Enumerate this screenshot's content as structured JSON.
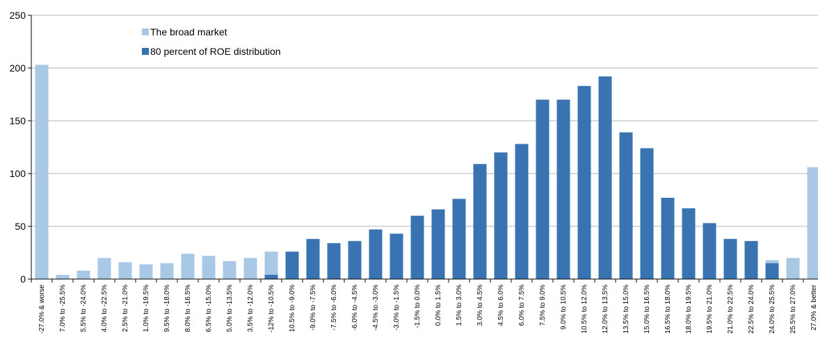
{
  "colors": {
    "broad_market": "#a9c8e6",
    "roe80": "#3a73b1",
    "grid": "#b3b3b3",
    "axis": "#000000"
  },
  "chart_data": {
    "type": "bar",
    "title": "",
    "xlabel": "",
    "ylabel": "",
    "ylim": [
      0,
      250
    ],
    "yticks": [
      0,
      50,
      100,
      150,
      200,
      250
    ],
    "grid": true,
    "legend_position": "top-left",
    "categories": [
      "-27.0% & worse",
      "7.0% to -25.5%",
      "5.5% to -24.0%",
      "4.0% to -22.5%",
      "2.5% to -21.0%",
      "1.0% to -19.5%",
      "9.5% to -18.0%",
      "8.0% to -16.5%",
      "6.5% to -15.0%",
      "5.0% to -13.5%",
      "3.5% to -12.0%",
      "-12% to -10.5%",
      "10.5% to -9.0%",
      "-9.0% to -7.5%",
      "-7.5% to -6.0%",
      "-6.0% to -4.5%",
      "-4.5% to -3.0%",
      "-3.0% to -1.5%",
      "-1.5% to 0.0%",
      "0.0% to 1.5%",
      "1.5% to 3.0%",
      "3.0% to 4.5%",
      "4.5% to 6.0%",
      "6.0% to 7.5%",
      "7.5% to 9.0%",
      "9.0% to 10.5%",
      "10.5% to 12.0%",
      "12.0% to 13.5%",
      "13.5% to 15.0%",
      "15.0% to 16.5%",
      "16.5% to 18.0%",
      "18.0% to 19.5%",
      "19.5% to 21.0%",
      "21.0% to 22.5%",
      "22.5% to 24.0%",
      "24.0% to 25.5%",
      "25.5% to 27.0%",
      "27.0% & better"
    ],
    "series": [
      {
        "name": "The broad market",
        "values": [
          203,
          4,
          8,
          20,
          16,
          14,
          15,
          24,
          22,
          17,
          20,
          26,
          26,
          38,
          34,
          36,
          47,
          43,
          60,
          66,
          76,
          109,
          120,
          128,
          170,
          170,
          183,
          192,
          139,
          124,
          77,
          67,
          53,
          38,
          36,
          18,
          20,
          106
        ]
      },
      {
        "name": "80 percent of ROE distribution",
        "values": [
          0,
          0,
          0,
          0,
          0,
          0,
          0,
          0,
          0,
          0,
          0,
          4,
          26,
          38,
          34,
          36,
          47,
          43,
          60,
          66,
          76,
          109,
          120,
          128,
          170,
          170,
          183,
          192,
          139,
          124,
          77,
          67,
          53,
          38,
          36,
          15,
          0,
          0
        ]
      }
    ]
  }
}
